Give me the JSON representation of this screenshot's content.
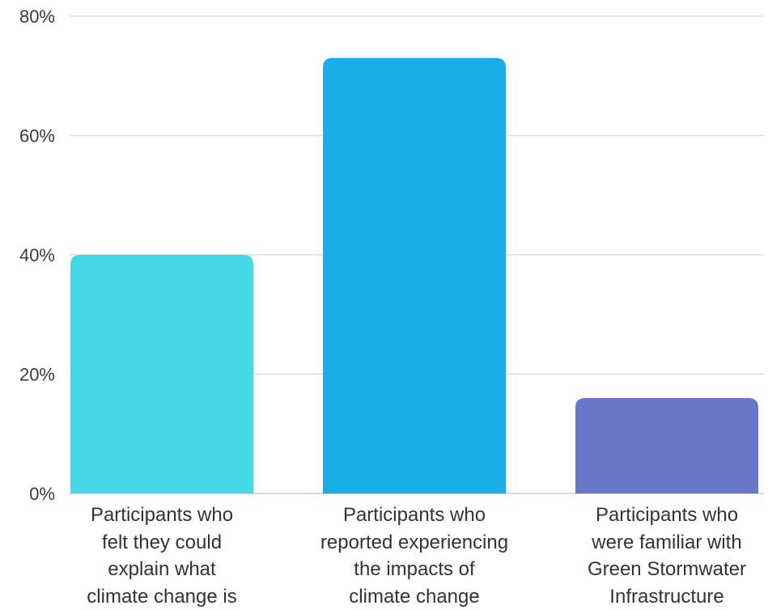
{
  "chart_data": {
    "type": "bar",
    "title": "",
    "xlabel": "",
    "ylabel": "",
    "ylim": [
      0,
      80
    ],
    "y_ticks": [
      "0%",
      "20%",
      "40%",
      "60%",
      "80%"
    ],
    "grid": true,
    "categories": [
      [
        "Participants who",
        "felt they could",
        "explain what",
        "climate change is"
      ],
      [
        "Participants who",
        "reported experiencing",
        "the impacts of",
        "climate change"
      ],
      [
        "Participants who",
        "were familiar with",
        "Green Stormwater",
        "Infrastructure"
      ]
    ],
    "values": [
      40,
      73,
      16
    ],
    "colors": [
      "#45d9e5",
      "#1aaee8",
      "#6a77c8"
    ]
  }
}
